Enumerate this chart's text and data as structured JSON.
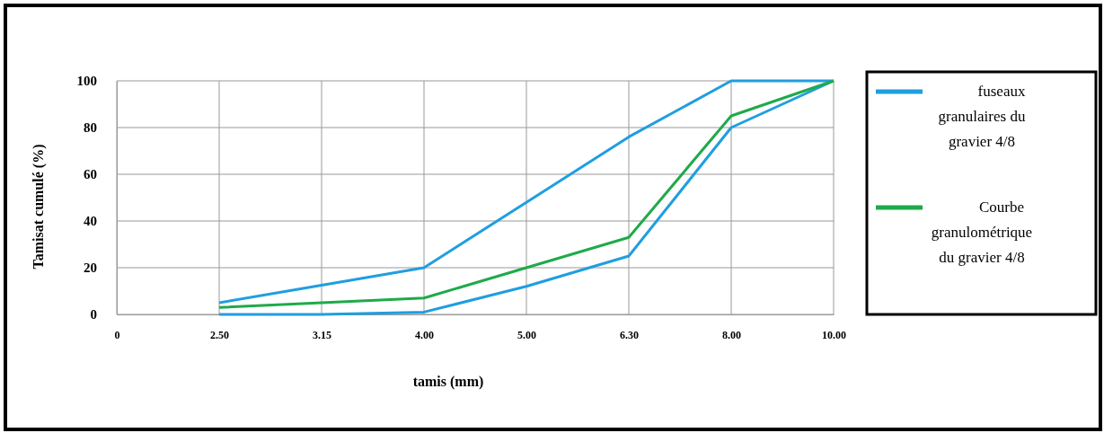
{
  "chart_data": {
    "type": "line",
    "xlabel": "tamis (mm)",
    "ylabel": "Tamisat cumulé (%)",
    "categories": [
      "0",
      "2.50",
      "3.15",
      "4.00",
      "5.00",
      "6.30",
      "8.00",
      "10.00"
    ],
    "series": [
      {
        "name": "fuseaux granulaires du gravier 4/8",
        "color": "#1f9ee0",
        "values": [
          null,
          5,
          12.5,
          20,
          48,
          76,
          100,
          100
        ]
      },
      {
        "color": "#1f9ee0",
        "values": [
          null,
          0,
          0,
          1,
          12,
          25,
          80,
          100
        ]
      },
      {
        "name": "Courbe granulométrique du gravier 4/8",
        "color": "#1faa4a",
        "values": [
          null,
          3,
          5,
          7,
          20,
          33,
          85,
          100
        ]
      }
    ],
    "ylim": [
      0,
      100
    ],
    "yticks": [
      0,
      20,
      40,
      60,
      80,
      100
    ],
    "grid": true,
    "legend": "right",
    "marker": "none",
    "line_style": "solid"
  }
}
